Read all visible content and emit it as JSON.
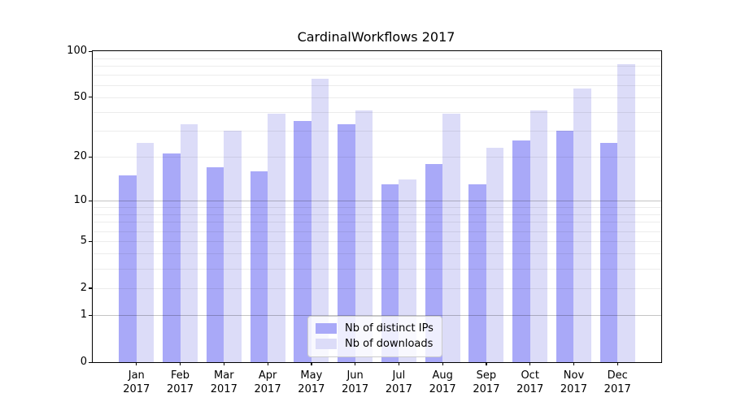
{
  "chart_data": {
    "type": "bar",
    "title": "CardinalWorkflows 2017",
    "categories": [
      "Jan",
      "Feb",
      "Mar",
      "Apr",
      "May",
      "Jun",
      "Jul",
      "Aug",
      "Sep",
      "Oct",
      "Nov",
      "Dec"
    ],
    "category_year": "2017",
    "series": [
      {
        "name": "Nb of distinct IPs",
        "color": "#a9a9f8",
        "values": [
          15,
          21,
          17,
          16,
          35,
          33,
          13,
          18,
          13,
          26,
          30,
          25
        ]
      },
      {
        "name": "Nb of downloads",
        "color": "#dcdcf8",
        "values": [
          25,
          33,
          30,
          39,
          66,
          41,
          14,
          39,
          23,
          41,
          57,
          82
        ]
      }
    ],
    "yscale": "log1p",
    "ylim": [
      0,
      100
    ],
    "y_tick_labels": [
      "0",
      "1",
      "2",
      "5",
      "10",
      "20",
      "50",
      "100"
    ],
    "y_tick_values": [
      0,
      1,
      2,
      5,
      10,
      20,
      50,
      100
    ],
    "major_gridlines": [
      1,
      10
    ],
    "minor_gridlines": [
      2,
      3,
      4,
      5,
      6,
      7,
      8,
      9,
      20,
      30,
      40,
      50,
      60,
      70,
      80,
      90
    ],
    "grid": true,
    "legend_position": "lower center",
    "bar_width_units": 0.4
  },
  "colors": {
    "background": "#ffffff",
    "spine": "#000000",
    "text": "#000000",
    "minor_grid": "rgba(0,0,0,0.075)",
    "major_grid": "rgba(0,0,0,0.23)",
    "legend_border": "#cccccc",
    "legend_background": "rgba(255,255,255,0.8)"
  }
}
